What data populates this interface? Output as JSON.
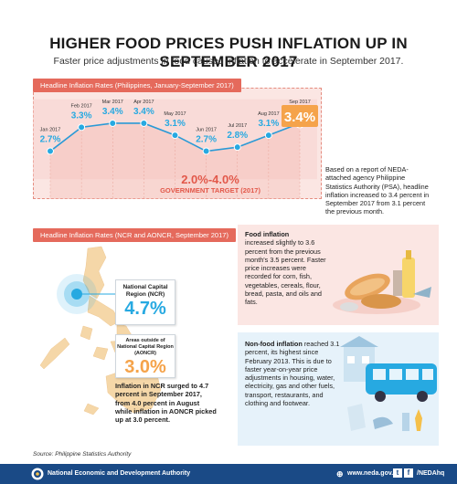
{
  "header": {
    "title": "HIGHER FOOD PRICES PUSH INFLATION UP IN SEPTEMBER 2017",
    "subtitle": "Faster price adjustments in food caused inflation to accelerate in September 2017."
  },
  "colors": {
    "blue": "#27a9e1",
    "orange": "#f5a34a",
    "coral": "#e56a5c",
    "navy": "#1a4a86",
    "pink": "#fbe6e3"
  },
  "chart_data": [
    {
      "type": "line",
      "title": "Headline Inflation Rates (Philippines, January-September 2017)",
      "categories": [
        "Jan 2017",
        "Feb 2017",
        "Mar 2017",
        "Apr 2017",
        "May 2017",
        "Jun 2017",
        "Jul 2017",
        "Aug 2017",
        "Sep 2017"
      ],
      "values": [
        2.7,
        3.3,
        3.4,
        3.4,
        3.1,
        2.7,
        2.8,
        3.1,
        3.4
      ],
      "labels": [
        "2.7%",
        "3.3%",
        "3.4%",
        "3.4%",
        "3.1%",
        "2.7%",
        "2.8%",
        "3.1%",
        "3.4%"
      ],
      "ylim": [
        1.5,
        4.2
      ],
      "target_band": [
        2.0,
        4.0
      ],
      "target_text": "2.0%-4.0%",
      "target_label": "GOVERNMENT TARGET (2017)"
    },
    {
      "type": "table",
      "title": "Headline Inflation Rates (NCR and AONCR, September 2017)",
      "rows": [
        {
          "region": "National Capital Region (NCR)",
          "value": 4.7,
          "label": "4.7%"
        },
        {
          "region": "Areas outside of National Capital Region (AONCR)",
          "value": 3.0,
          "label": "3.0%"
        }
      ]
    }
  ],
  "note_psa": "Based on a report of NEDA-attached agency Philippine Statistics Authority (PSA), headline inflation increased to 3.4 percent in September 2017 from 3.1 percent the previous month.",
  "ncr_note": "Inflation in NCR surged to 4.7 percent in September 2017, from 4.0 percent in August while inflation in AONCR picked up at 3.0 percent.",
  "food": {
    "heading": "Food inflation",
    "body": "increased slightly to 3.6 percent from the previous month's 3.5 percent. Faster price increases were recorded for corn, fish, vegetables, cereals, flour, bread, pasta, and oils and fats."
  },
  "nonfood": {
    "heading": "Non-food inflation",
    "body": "reached 3.1 percent, its highest since February 2013. This is due to faster year-on-year price adjustments in housing, water, electricity, gas and other fuels, transport, restaurants, and clothing and footwear."
  },
  "source": "Source: Philippine Statistics Authority",
  "footer": {
    "org": "National Economic and Development Authority",
    "web": "www.neda.gov.ph",
    "social": "/NEDAhq"
  }
}
